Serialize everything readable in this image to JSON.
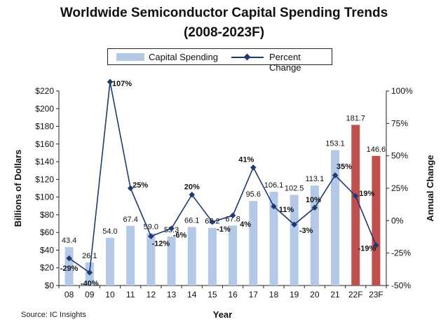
{
  "source": "Source: IC Insights",
  "colors": {
    "bar": "#b4c8e8",
    "forecast_bar": "#c0504d",
    "line": "#1f3a6e",
    "axis": "#222222"
  },
  "chart_data": {
    "type": "bar",
    "title": "Worldwide Semiconductor Capital Spending Trends",
    "subtitle": "(2008-2023F)",
    "xlabel": "Year",
    "ylabel": "Billions of Dollars",
    "y2label": "Annual Change",
    "ylim": [
      0,
      220
    ],
    "yticks": [
      "$0",
      "$20",
      "$40",
      "$60",
      "$80",
      "$100",
      "$120",
      "$140",
      "$160",
      "$180",
      "$200",
      "$220"
    ],
    "y2lim": [
      -50,
      100
    ],
    "y2ticks": [
      "-50%",
      "-25%",
      "0%",
      "25%",
      "50%",
      "75%",
      "100%"
    ],
    "categories": [
      "08",
      "09",
      "10",
      "11",
      "12",
      "13",
      "14",
      "15",
      "16",
      "17",
      "18",
      "19",
      "20",
      "21",
      "22F",
      "23F"
    ],
    "forecast": [
      false,
      false,
      false,
      false,
      false,
      false,
      false,
      false,
      false,
      false,
      false,
      false,
      false,
      false,
      true,
      true
    ],
    "legend": {
      "bar": "Capital Spending",
      "line": "Percent Change",
      "position": "top-center"
    },
    "series": [
      {
        "name": "Capital Spending",
        "type": "bar",
        "values": [
          43.4,
          26.1,
          54.0,
          67.4,
          59.0,
          55.3,
          66.1,
          65.2,
          67.8,
          95.6,
          106.1,
          102.5,
          113.1,
          153.1,
          181.7,
          146.6
        ],
        "labels": [
          "43.4",
          "26.1",
          "54.0",
          "67.4",
          "59.0",
          "55.3",
          "66.1",
          "65.2",
          "67.8",
          "95.6",
          "106.1",
          "102.5",
          "113.1",
          "153.1",
          "181.7",
          "146.6"
        ]
      },
      {
        "name": "Percent Change",
        "type": "line",
        "axis": "right",
        "values": [
          -29,
          -40,
          107,
          25,
          -12,
          -6,
          20,
          -1,
          4,
          41,
          11,
          -3,
          10,
          35,
          19,
          -19
        ],
        "labels": [
          "-29%",
          "-40%",
          "107%",
          "25%",
          "-12%",
          "-6%",
          "20%",
          "-1%",
          "4%",
          "41%",
          "11%",
          "-3%",
          "10%",
          "35%",
          "19%",
          "-19%"
        ]
      }
    ]
  }
}
